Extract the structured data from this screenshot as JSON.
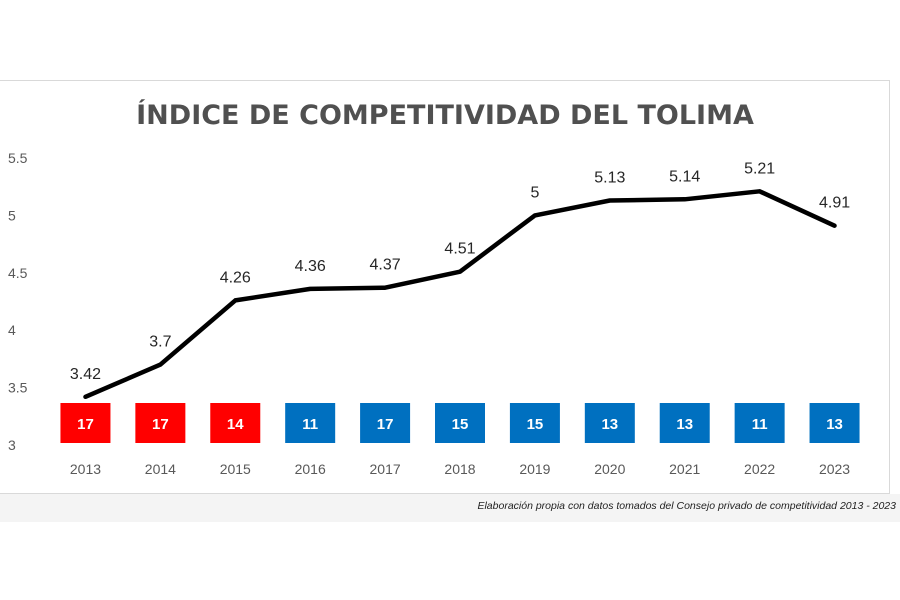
{
  "chart_data": {
    "type": "line",
    "title": "ÍNDICE DE COMPETITIVIDAD DEL TOLIMA",
    "xlabel": "",
    "ylabel": "",
    "x": [
      "2013",
      "2014",
      "2015",
      "2016",
      "2017",
      "2018",
      "2019",
      "2020",
      "2021",
      "2022",
      "2023"
    ],
    "values": [
      3.42,
      3.7,
      4.26,
      4.36,
      4.37,
      4.51,
      5,
      5.13,
      5.14,
      5.21,
      4.91
    ],
    "value_labels": [
      "3.42",
      "3.7",
      "4.26",
      "4.36",
      "4.37",
      "4.51",
      "5",
      "5.13",
      "5.14",
      "5.21",
      "4.91"
    ],
    "ylim": [
      3,
      5.5
    ],
    "yticks": [
      "3",
      "3.5",
      "4",
      "4.5",
      "5",
      "5.5"
    ],
    "ytick_values": [
      3,
      3.5,
      4,
      4.5,
      5,
      5.5
    ],
    "grid": false,
    "line_color": "#000000",
    "ranking_boxes": [
      {
        "label": "17",
        "color": "#ff0000"
      },
      {
        "label": "17",
        "color": "#ff0000"
      },
      {
        "label": "14",
        "color": "#ff0000"
      },
      {
        "label": "11",
        "color": "#0070c0"
      },
      {
        "label": "17",
        "color": "#0070c0"
      },
      {
        "label": "15",
        "color": "#0070c0"
      },
      {
        "label": "15",
        "color": "#0070c0"
      },
      {
        "label": "13",
        "color": "#0070c0"
      },
      {
        "label": "13",
        "color": "#0070c0"
      },
      {
        "label": "11",
        "color": "#0070c0"
      },
      {
        "label": "13",
        "color": "#0070c0"
      }
    ]
  },
  "caption": "Elaboración propia con datos tomados del Consejo privado de competitividad 2013 - 2023"
}
